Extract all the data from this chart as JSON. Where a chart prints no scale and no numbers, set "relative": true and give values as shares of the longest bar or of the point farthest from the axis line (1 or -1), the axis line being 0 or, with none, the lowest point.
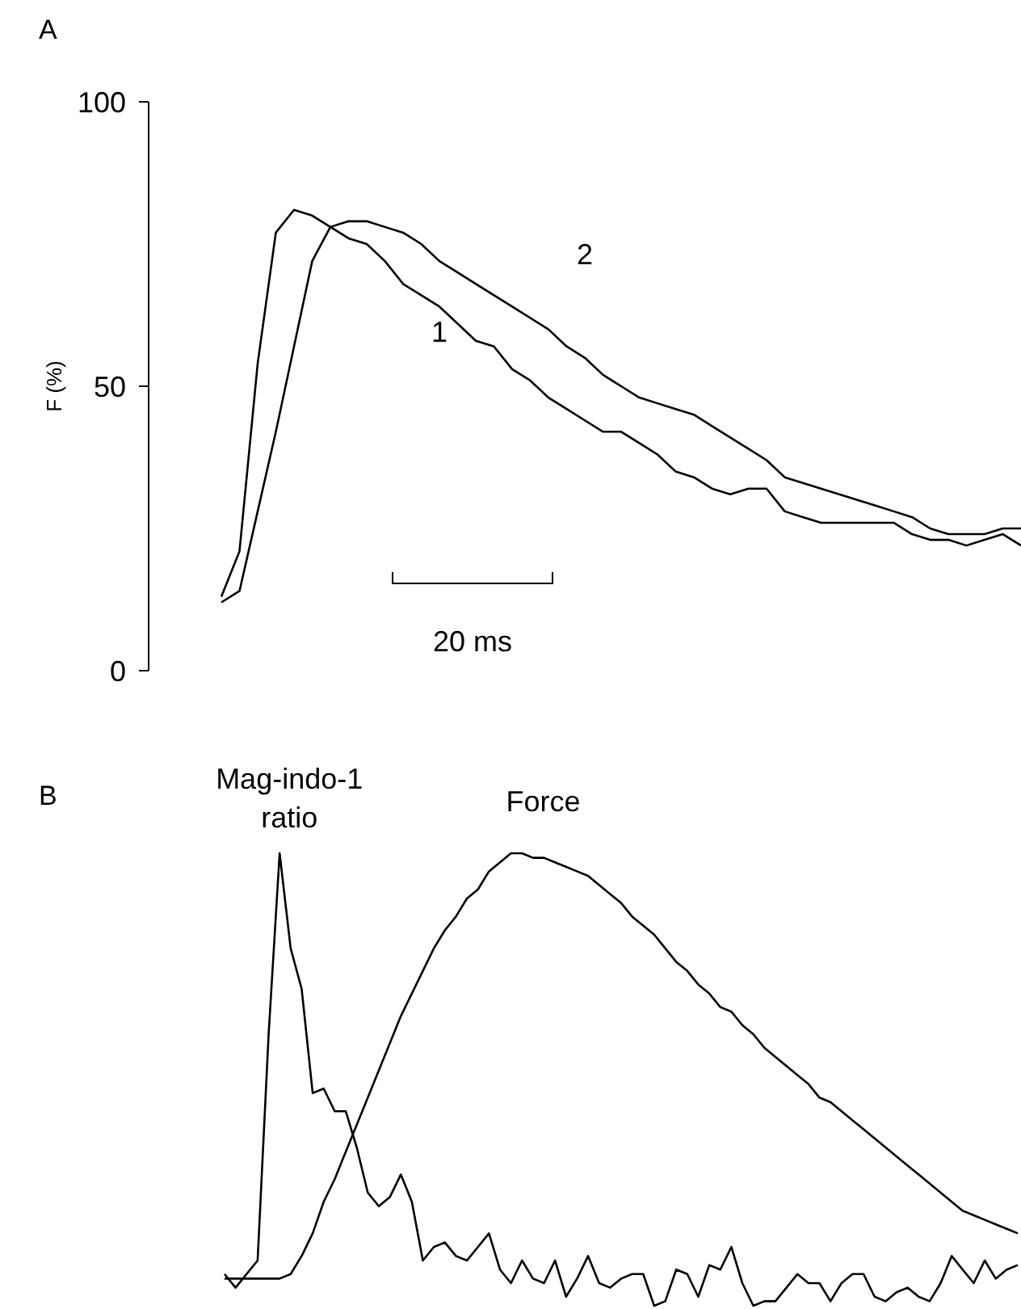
{
  "chart_data": [
    {
      "type": "line",
      "title": "A",
      "ylabel": "F (%)",
      "annotations": [
        "20 ms"
      ],
      "tick_labels": "y",
      "categories": [
        null,
        null,
        null,
        null,
        null,
        null,
        null,
        null,
        null,
        null,
        null,
        null,
        null,
        null,
        null,
        null,
        null,
        null,
        null,
        null,
        null,
        null,
        null,
        null,
        null,
        null,
        null,
        null,
        null,
        null,
        null,
        null,
        null,
        null,
        null,
        null,
        null,
        null,
        null,
        null,
        null,
        null,
        null,
        null,
        null
      ],
      "ylim": [
        0,
        100
      ],
      "yticks": [
        0,
        50,
        100
      ],
      "series": [
        {
          "name": "1",
          "color": "#000000",
          "values": [
            13,
            21,
            54,
            77,
            81,
            80,
            78,
            76,
            75,
            72,
            68,
            66,
            64,
            61,
            58,
            57,
            53,
            51,
            48,
            46,
            44,
            42,
            42,
            40,
            38,
            35,
            34,
            32,
            31,
            32,
            32,
            28,
            27,
            26,
            26,
            26,
            26,
            26,
            24,
            23,
            23,
            22,
            23,
            24,
            22
          ]
        },
        {
          "name": "2",
          "color": "#000000",
          "values": [
            12,
            14,
            28,
            42,
            57,
            72,
            78,
            79,
            79,
            78,
            77,
            75,
            72,
            70,
            68,
            66,
            64,
            62,
            60,
            57,
            55,
            52,
            50,
            48,
            47,
            46,
            45,
            43,
            41,
            39,
            37,
            34,
            33,
            32,
            31,
            30,
            29,
            28,
            27,
            25,
            24,
            24,
            24,
            25,
            25
          ]
        }
      ]
    },
    {
      "type": "line",
      "title": "B",
      "relative": true,
      "categories": [
        null,
        null,
        null,
        null,
        null,
        null,
        null,
        null,
        null,
        null,
        null,
        null,
        null,
        null,
        null,
        null,
        null,
        null,
        null,
        null,
        null,
        null,
        null,
        null,
        null,
        null,
        null,
        null,
        null,
        null,
        null,
        null,
        null,
        null,
        null,
        null,
        null,
        null,
        null,
        null,
        null,
        null,
        null,
        null,
        null,
        null,
        null,
        null,
        null,
        null,
        null,
        null,
        null,
        null,
        null,
        null,
        null,
        null,
        null,
        null,
        null,
        null,
        null,
        null,
        null,
        null,
        null,
        null,
        null,
        null,
        null,
        null,
        null
      ],
      "series": [
        {
          "name": "Mag-indo-1 ratio",
          "color": "#000000",
          "values": [
            0.07,
            0.04,
            0.07,
            0.1,
            0.6,
            1,
            0.79,
            0.7,
            0.47,
            0.48,
            0.43,
            0.43,
            0.35,
            0.25,
            0.22,
            0.24,
            0.29,
            0.23,
            0.1,
            0.13,
            0.14,
            0.11,
            0.1,
            0.13,
            0.16,
            0.08,
            0.05,
            0.1,
            0.06,
            0.05,
            0.1,
            0.02,
            0.06,
            0.11,
            0.05,
            0.04,
            0.06,
            0.07,
            0.07,
            0,
            0.01,
            0.08,
            0.07,
            0.02,
            0.09,
            0.08,
            0.13,
            0.05,
            0,
            0.01,
            0.01,
            0.04,
            0.07,
            0.05,
            0.05,
            0.01,
            0.05,
            0.07,
            0.07,
            0.02,
            0.01,
            0.03,
            0.04,
            0.02,
            0.01,
            0.05,
            0.11,
            0.08,
            0.05,
            0.1,
            0.06,
            0.08,
            0.09
          ]
        },
        {
          "name": "Force",
          "color": "#000000",
          "values": [
            0.06,
            0.06,
            0.06,
            0.06,
            0.06,
            0.06,
            0.07,
            0.11,
            0.16,
            0.23,
            0.28,
            0.34,
            0.4,
            0.46,
            0.52,
            0.58,
            0.64,
            0.69,
            0.74,
            0.79,
            0.83,
            0.86,
            0.9,
            0.92,
            0.96,
            0.98,
            1,
            1,
            0.99,
            0.99,
            0.98,
            0.97,
            0.96,
            0.95,
            0.93,
            0.91,
            0.89,
            0.86,
            0.84,
            0.82,
            0.79,
            0.76,
            0.74,
            0.71,
            0.69,
            0.66,
            0.65,
            0.62,
            0.6,
            0.57,
            0.55,
            0.53,
            0.51,
            0.49,
            0.46,
            0.45,
            0.43,
            0.41,
            0.39,
            0.37,
            0.35,
            0.33,
            0.31,
            0.29,
            0.27,
            0.25,
            0.23,
            0.21,
            0.2,
            0.19,
            0.18,
            0.17,
            0.16
          ]
        }
      ]
    }
  ]
}
